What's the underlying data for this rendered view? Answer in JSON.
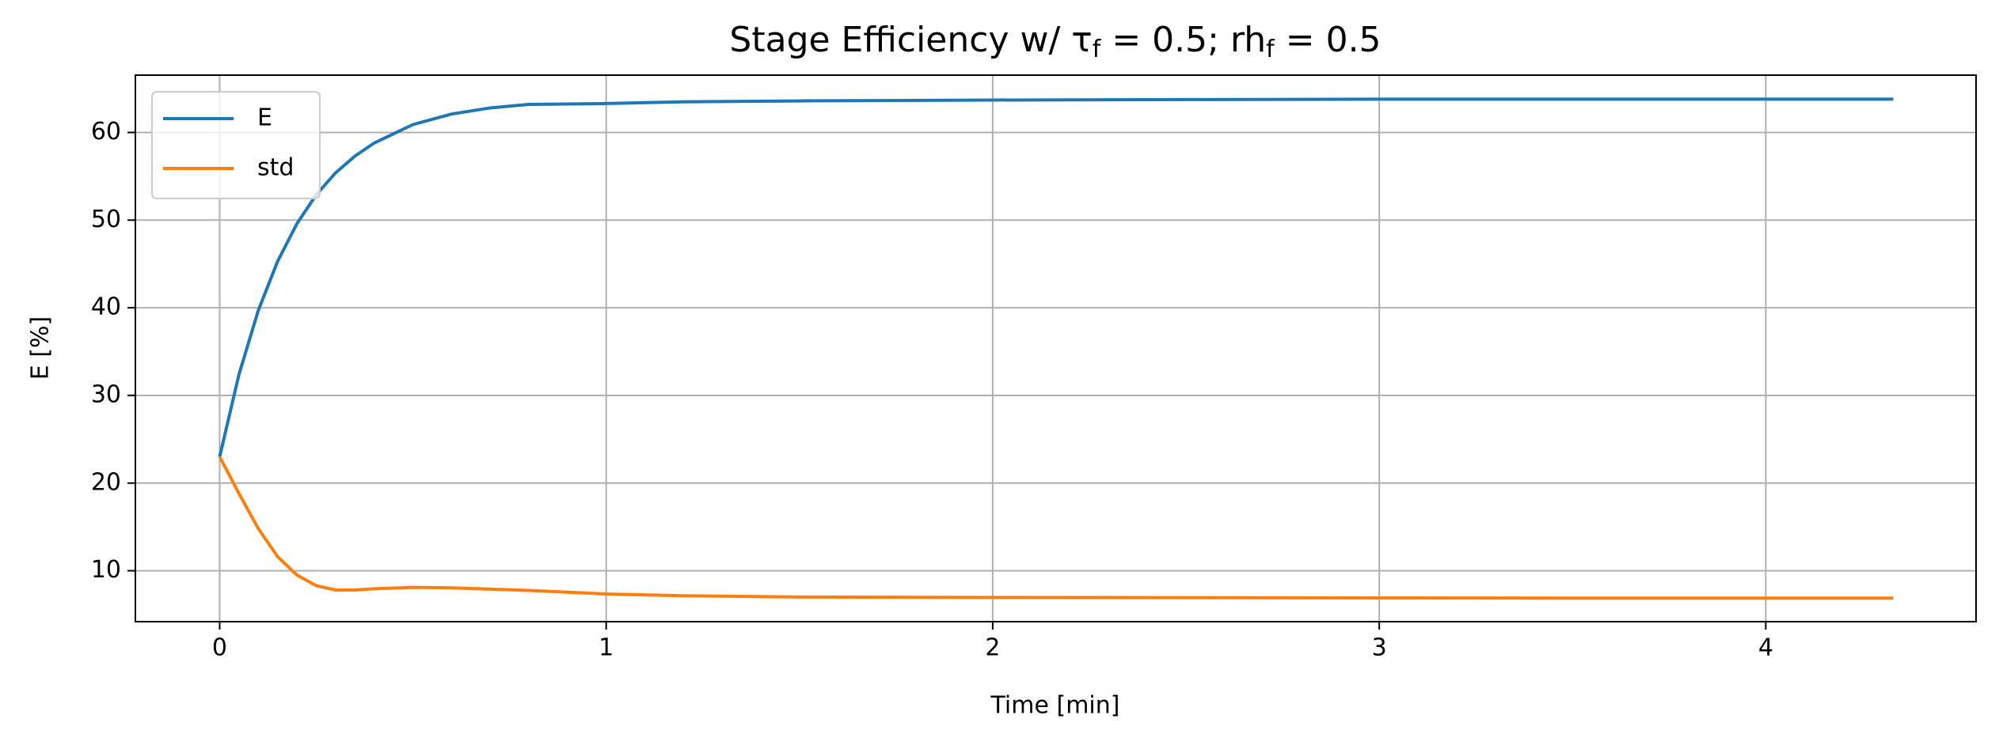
{
  "chart_data": {
    "type": "line",
    "title": [
      "Stage Efficiency w/ τ",
      "f",
      " = 0.5; rh",
      "f",
      " = 0.5"
    ],
    "xlabel": "Time [min]",
    "ylabel": "E [%]",
    "x": [
      0,
      0.05,
      0.1,
      0.15,
      0.2,
      0.25,
      0.3,
      0.35,
      0.4,
      0.5,
      0.6,
      0.7,
      0.8,
      1.0,
      1.2,
      1.5,
      2.0,
      2.5,
      3.0,
      3.5,
      4.0,
      4.33
    ],
    "series": [
      {
        "name": "E",
        "color": "#1f77b4",
        "values": [
          23,
          32.4,
          39.7,
          45.3,
          49.6,
          52.9,
          55.4,
          57.3,
          58.8,
          60.9,
          62.1,
          62.8,
          63.2,
          63.3,
          63.5,
          63.6,
          63.7,
          63.75,
          63.8,
          63.8,
          63.8,
          63.8
        ]
      },
      {
        "name": "std",
        "color": "#ff7f0e",
        "values": [
          23,
          18.8,
          14.8,
          11.6,
          9.5,
          8.3,
          7.8,
          7.8,
          7.95,
          8.1,
          8.05,
          7.9,
          7.75,
          7.35,
          7.15,
          7.0,
          6.95,
          6.93,
          6.9,
          6.88,
          6.87,
          6.87
        ]
      }
    ],
    "xlim": [
      -0.218,
      4.544
    ],
    "ylim": [
      4.19,
      66.54
    ],
    "xticks": [
      0,
      1,
      2,
      3,
      4
    ],
    "yticks": [
      10,
      20,
      30,
      40,
      50,
      60
    ],
    "grid": true,
    "legend": "upper left"
  }
}
